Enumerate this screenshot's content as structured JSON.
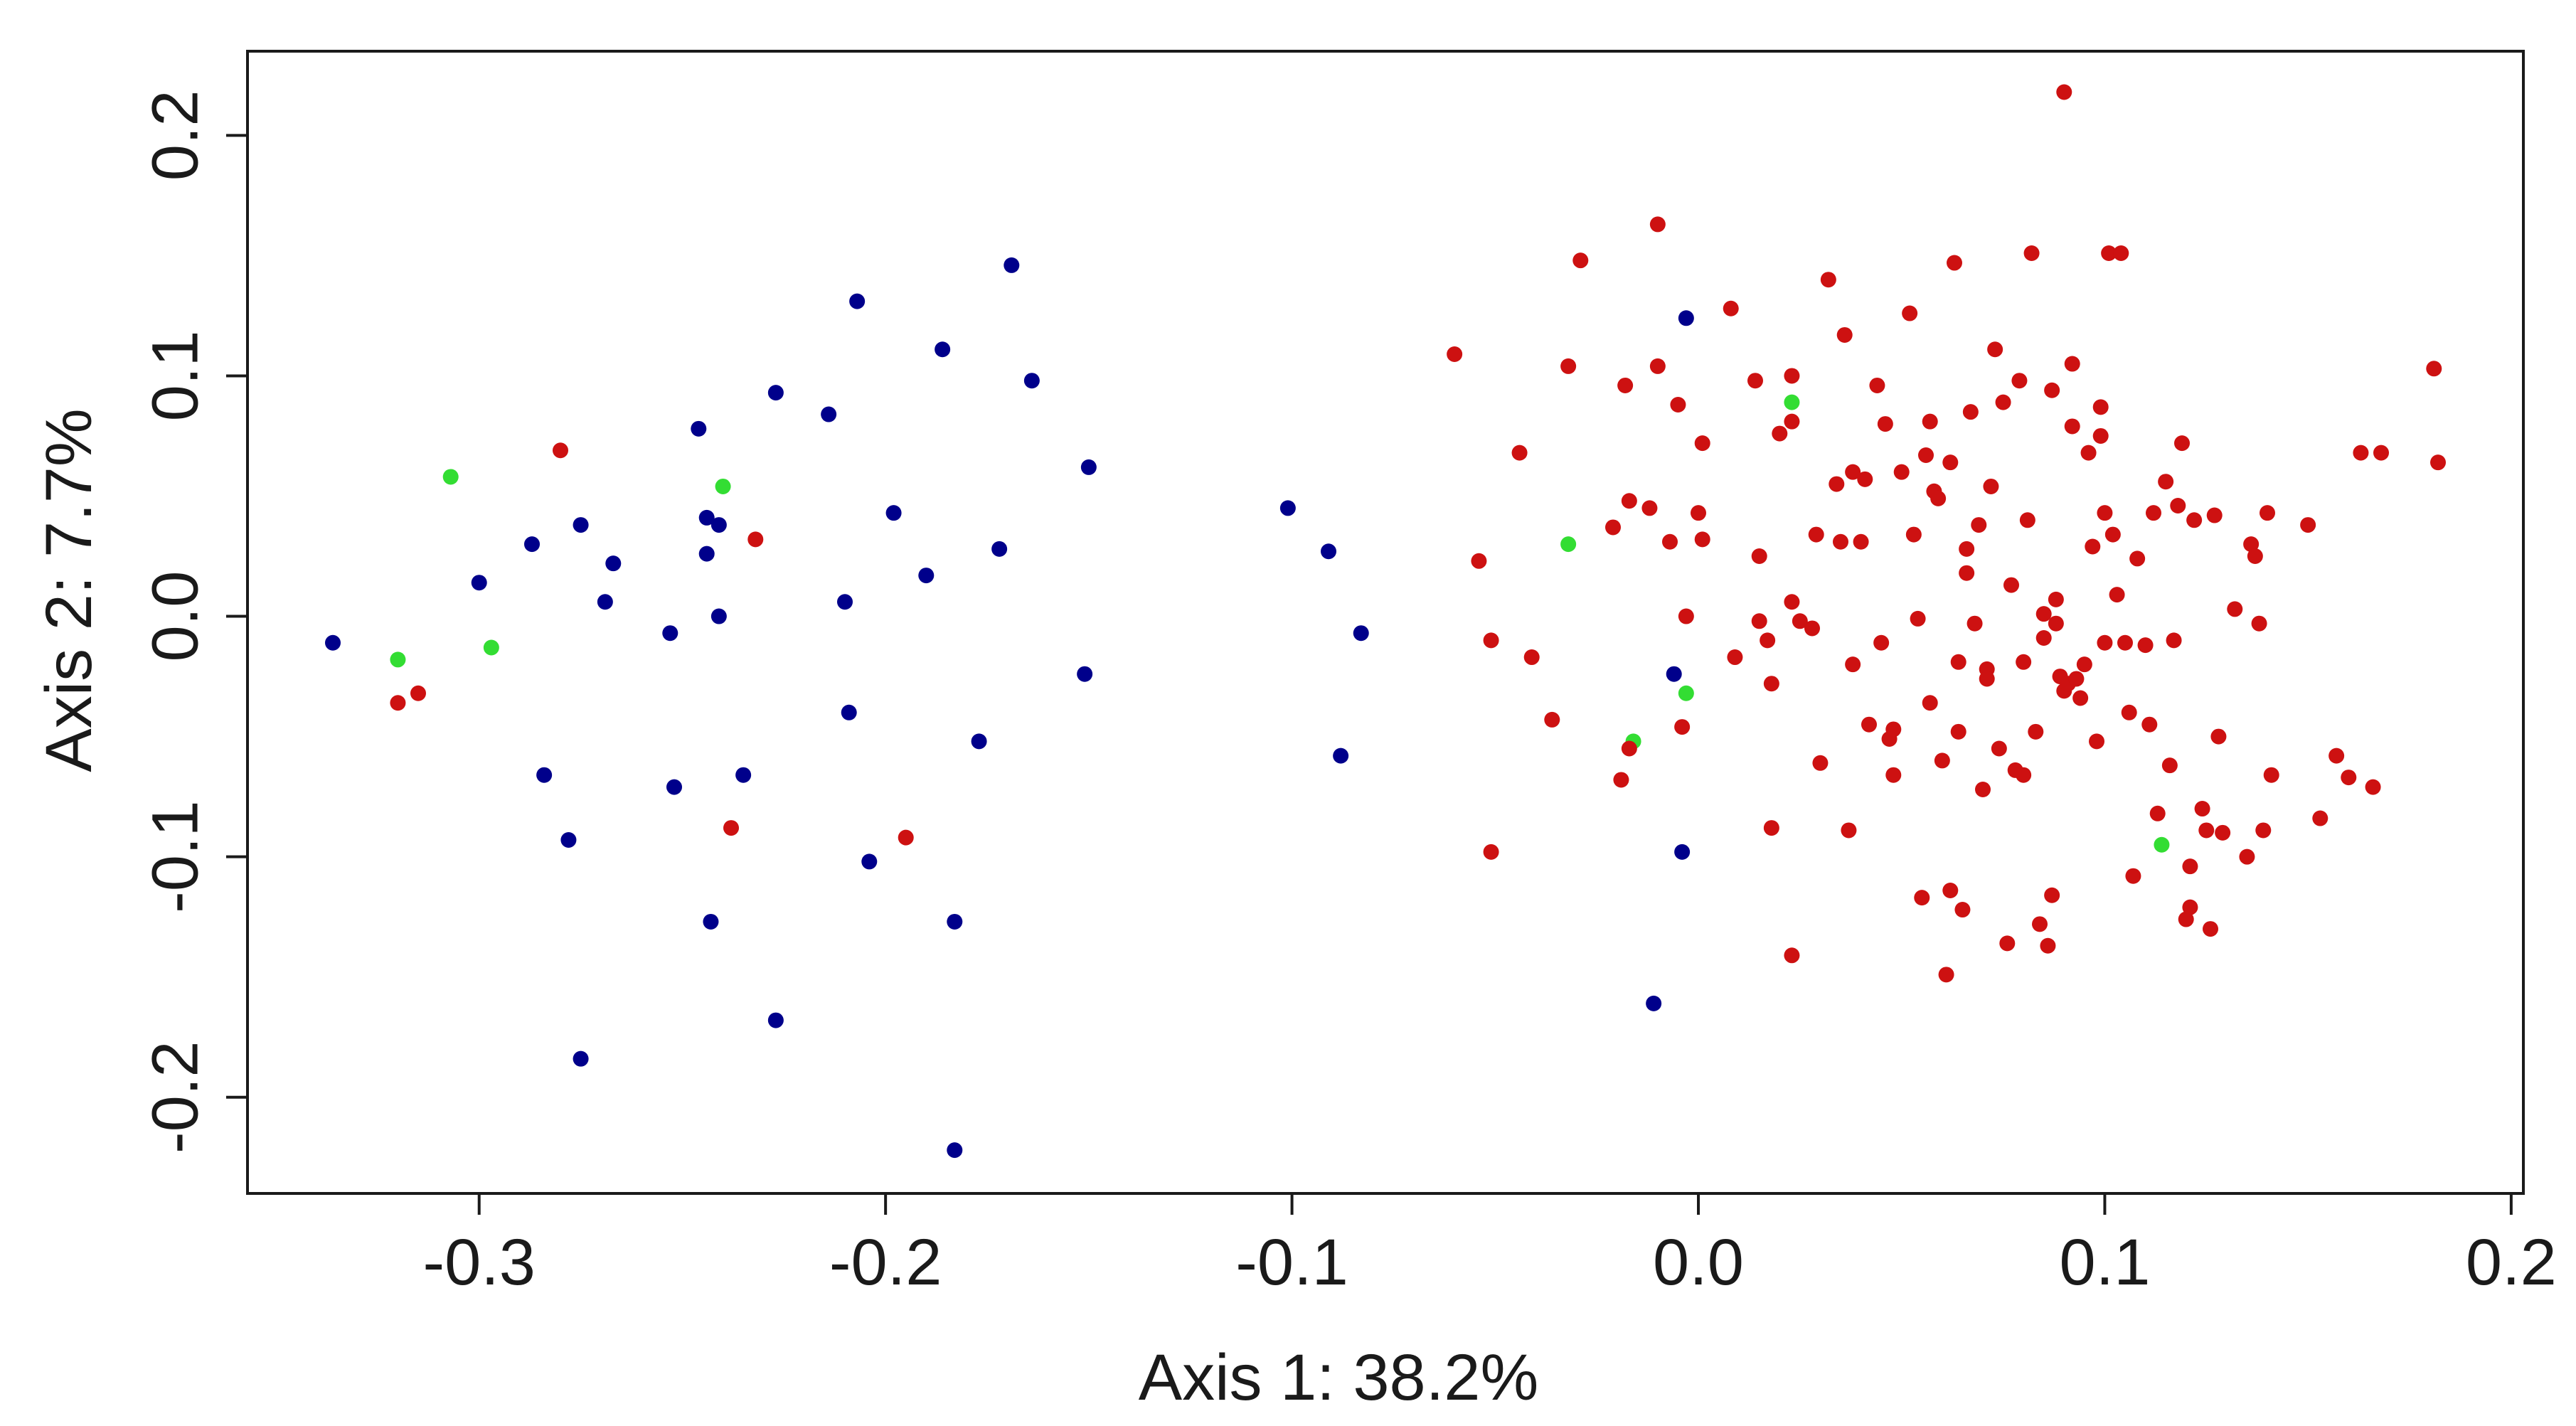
{
  "chart_data": {
    "type": "scatter",
    "title": "",
    "xlabel": "Axis 1: 38.2%",
    "ylabel": "Axis 2: 7.7%",
    "xlim": [
      -0.357,
      0.203
    ],
    "ylim": [
      -0.24,
      0.235
    ],
    "x_ticks": [
      -0.3,
      -0.2,
      -0.1,
      0.0,
      0.1,
      0.2
    ],
    "x_tick_labels": [
      "-0.3",
      "-0.2",
      "-0.1",
      "0.0",
      "0.1",
      "0.2"
    ],
    "y_ticks": [
      -0.2,
      -0.1,
      0.0,
      0.1,
      0.2
    ],
    "y_tick_labels": [
      "-0.2",
      "-0.1",
      "0.0",
      "0.1",
      "0.2"
    ],
    "grid": false,
    "legend": "none",
    "colors": {
      "blue": "#00008b",
      "red": "#cd1111",
      "green": "#33dd33"
    },
    "series": [
      {
        "color": "#00008b",
        "points": [
          [
            -0.336,
            -0.011
          ],
          [
            -0.3,
            0.014
          ],
          [
            -0.287,
            0.03
          ],
          [
            -0.284,
            -0.066
          ],
          [
            -0.278,
            -0.093
          ],
          [
            -0.275,
            0.038
          ],
          [
            -0.275,
            -0.184
          ],
          [
            -0.269,
            0.006
          ],
          [
            -0.267,
            0.022
          ],
          [
            -0.253,
            -0.007
          ],
          [
            -0.252,
            -0.071
          ],
          [
            -0.246,
            0.078
          ],
          [
            -0.244,
            0.041
          ],
          [
            -0.244,
            0.026
          ],
          [
            -0.243,
            -0.127
          ],
          [
            -0.241,
            0.038
          ],
          [
            -0.241,
            0.0
          ],
          [
            -0.235,
            -0.066
          ],
          [
            -0.227,
            0.093
          ],
          [
            -0.227,
            -0.168
          ],
          [
            -0.214,
            0.084
          ],
          [
            -0.21,
            0.006
          ],
          [
            -0.209,
            -0.04
          ],
          [
            -0.207,
            0.131
          ],
          [
            -0.204,
            -0.102
          ],
          [
            -0.198,
            0.043
          ],
          [
            -0.19,
            0.017
          ],
          [
            -0.186,
            0.111
          ],
          [
            -0.183,
            -0.127
          ],
          [
            -0.183,
            -0.222
          ],
          [
            -0.177,
            -0.052
          ],
          [
            -0.172,
            0.028
          ],
          [
            -0.169,
            0.146
          ],
          [
            -0.164,
            0.098
          ],
          [
            -0.151,
            -0.024
          ],
          [
            -0.15,
            0.062
          ],
          [
            -0.101,
            0.045
          ],
          [
            -0.091,
            0.027
          ],
          [
            -0.088,
            -0.058
          ],
          [
            -0.083,
            -0.007
          ],
          [
            -0.011,
            -0.161
          ],
          [
            -0.006,
            -0.024
          ],
          [
            -0.004,
            -0.098
          ],
          [
            -0.003,
            0.124
          ]
        ]
      },
      {
        "color": "#33dd33",
        "points": [
          [
            -0.32,
            -0.018
          ],
          [
            -0.307,
            0.058
          ],
          [
            -0.297,
            -0.013
          ],
          [
            -0.24,
            0.054
          ],
          [
            -0.032,
            0.03
          ],
          [
            -0.016,
            -0.052
          ],
          [
            -0.003,
            -0.032
          ],
          [
            0.023,
            0.089
          ],
          [
            0.114,
            -0.095
          ]
        ]
      },
      {
        "color": "#cd1111",
        "points": [
          [
            -0.32,
            -0.036
          ],
          [
            -0.315,
            -0.032
          ],
          [
            -0.28,
            0.069
          ],
          [
            -0.232,
            0.032
          ],
          [
            -0.238,
            -0.088
          ],
          [
            -0.195,
            -0.092
          ],
          [
            -0.06,
            0.109
          ],
          [
            -0.054,
            0.023
          ],
          [
            -0.051,
            -0.01
          ],
          [
            -0.051,
            -0.098
          ],
          [
            -0.044,
            0.068
          ],
          [
            -0.041,
            -0.017
          ],
          [
            -0.036,
            -0.043
          ],
          [
            -0.032,
            0.104
          ],
          [
            -0.029,
            0.148
          ],
          [
            -0.021,
            0.037
          ],
          [
            -0.019,
            -0.068
          ],
          [
            -0.018,
            0.096
          ],
          [
            -0.017,
            0.048
          ],
          [
            -0.017,
            -0.055
          ],
          [
            -0.012,
            0.045
          ],
          [
            -0.01,
            0.163
          ],
          [
            -0.01,
            0.104
          ],
          [
            -0.007,
            0.031
          ],
          [
            -0.005,
            0.088
          ],
          [
            -0.004,
            -0.046
          ],
          [
            -0.003,
            0.0
          ],
          [
            0.0,
            0.043
          ],
          [
            0.001,
            0.072
          ],
          [
            0.001,
            0.032
          ],
          [
            0.008,
            0.128
          ],
          [
            0.009,
            -0.017
          ],
          [
            0.014,
            0.098
          ],
          [
            0.015,
            -0.002
          ],
          [
            0.015,
            0.025
          ],
          [
            0.017,
            -0.01
          ],
          [
            0.018,
            -0.028
          ],
          [
            0.018,
            -0.088
          ],
          [
            0.02,
            0.076
          ],
          [
            0.023,
            0.081
          ],
          [
            0.023,
            0.1
          ],
          [
            0.023,
            0.006
          ],
          [
            0.023,
            -0.141
          ],
          [
            0.025,
            -0.002
          ],
          [
            0.028,
            -0.005
          ],
          [
            0.029,
            0.034
          ],
          [
            0.03,
            -0.061
          ],
          [
            0.032,
            0.14
          ],
          [
            0.034,
            0.055
          ],
          [
            0.035,
            0.031
          ],
          [
            0.036,
            0.117
          ],
          [
            0.037,
            -0.089
          ],
          [
            0.038,
            0.06
          ],
          [
            0.038,
            -0.02
          ],
          [
            0.04,
            0.031
          ],
          [
            0.041,
            0.057
          ],
          [
            0.042,
            -0.045
          ],
          [
            0.044,
            0.096
          ],
          [
            0.045,
            -0.011
          ],
          [
            0.046,
            0.08
          ],
          [
            0.047,
            -0.051
          ],
          [
            0.048,
            -0.066
          ],
          [
            0.048,
            -0.047
          ],
          [
            0.05,
            0.06
          ],
          [
            0.052,
            0.126
          ],
          [
            0.053,
            0.034
          ],
          [
            0.054,
            -0.001
          ],
          [
            0.055,
            -0.117
          ],
          [
            0.056,
            0.067
          ],
          [
            0.057,
            -0.036
          ],
          [
            0.057,
            0.081
          ],
          [
            0.058,
            0.052
          ],
          [
            0.059,
            0.049
          ],
          [
            0.06,
            -0.06
          ],
          [
            0.061,
            -0.149
          ],
          [
            0.062,
            -0.114
          ],
          [
            0.062,
            0.064
          ],
          [
            0.063,
            0.147
          ],
          [
            0.064,
            -0.019
          ],
          [
            0.064,
            -0.048
          ],
          [
            0.065,
            -0.122
          ],
          [
            0.066,
            0.028
          ],
          [
            0.066,
            0.018
          ],
          [
            0.067,
            0.085
          ],
          [
            0.068,
            -0.003
          ],
          [
            0.069,
            0.038
          ],
          [
            0.07,
            -0.072
          ],
          [
            0.071,
            -0.022
          ],
          [
            0.071,
            -0.026
          ],
          [
            0.072,
            0.054
          ],
          [
            0.073,
            0.111
          ],
          [
            0.074,
            -0.055
          ],
          [
            0.075,
            0.089
          ],
          [
            0.076,
            -0.136
          ],
          [
            0.077,
            0.013
          ],
          [
            0.078,
            -0.064
          ],
          [
            0.079,
            0.098
          ],
          [
            0.08,
            -0.019
          ],
          [
            0.08,
            -0.066
          ],
          [
            0.081,
            0.04
          ],
          [
            0.082,
            0.151
          ],
          [
            0.083,
            -0.048
          ],
          [
            0.084,
            -0.128
          ],
          [
            0.085,
            0.001
          ],
          [
            0.085,
            -0.009
          ],
          [
            0.086,
            -0.137
          ],
          [
            0.087,
            0.094
          ],
          [
            0.087,
            -0.116
          ],
          [
            0.088,
            -0.003
          ],
          [
            0.088,
            0.007
          ],
          [
            0.089,
            -0.025
          ],
          [
            0.09,
            0.218
          ],
          [
            0.09,
            -0.031
          ],
          [
            0.091,
            -0.028
          ],
          [
            0.092,
            0.105
          ],
          [
            0.092,
            0.079
          ],
          [
            0.093,
            -0.026
          ],
          [
            0.094,
            -0.034
          ],
          [
            0.095,
            -0.02
          ],
          [
            0.096,
            0.068
          ],
          [
            0.097,
            0.029
          ],
          [
            0.098,
            -0.052
          ],
          [
            0.099,
            0.075
          ],
          [
            0.099,
            0.087
          ],
          [
            0.1,
            -0.011
          ],
          [
            0.1,
            0.043
          ],
          [
            0.101,
            0.151
          ],
          [
            0.102,
            0.034
          ],
          [
            0.103,
            0.009
          ],
          [
            0.104,
            0.151
          ],
          [
            0.105,
            -0.011
          ],
          [
            0.106,
            -0.04
          ],
          [
            0.107,
            -0.108
          ],
          [
            0.108,
            0.024
          ],
          [
            0.11,
            -0.012
          ],
          [
            0.111,
            -0.045
          ],
          [
            0.112,
            0.043
          ],
          [
            0.113,
            -0.082
          ],
          [
            0.115,
            0.056
          ],
          [
            0.116,
            -0.062
          ],
          [
            0.117,
            -0.01
          ],
          [
            0.118,
            0.046
          ],
          [
            0.119,
            0.072
          ],
          [
            0.12,
            -0.126
          ],
          [
            0.121,
            -0.121
          ],
          [
            0.121,
            -0.104
          ],
          [
            0.122,
            0.04
          ],
          [
            0.124,
            -0.08
          ],
          [
            0.125,
            -0.089
          ],
          [
            0.126,
            -0.13
          ],
          [
            0.127,
            0.042
          ],
          [
            0.128,
            -0.05
          ],
          [
            0.129,
            -0.09
          ],
          [
            0.132,
            0.003
          ],
          [
            0.135,
            -0.1
          ],
          [
            0.136,
            0.03
          ],
          [
            0.137,
            0.025
          ],
          [
            0.138,
            -0.003
          ],
          [
            0.139,
            -0.089
          ],
          [
            0.14,
            0.043
          ],
          [
            0.141,
            -0.066
          ],
          [
            0.15,
            0.038
          ],
          [
            0.153,
            -0.084
          ],
          [
            0.157,
            -0.058
          ],
          [
            0.16,
            -0.067
          ],
          [
            0.163,
            0.068
          ],
          [
            0.166,
            -0.071
          ],
          [
            0.168,
            0.068
          ],
          [
            0.181,
            0.103
          ],
          [
            0.182,
            0.064
          ]
        ]
      }
    ]
  }
}
